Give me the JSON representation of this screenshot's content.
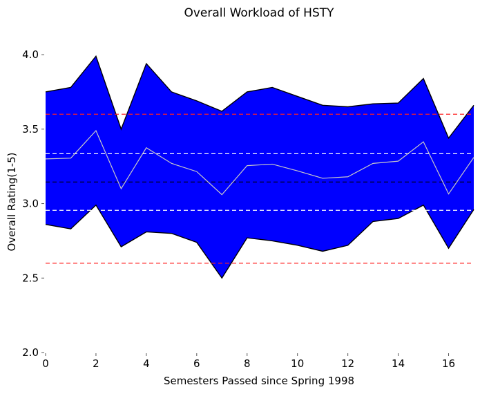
{
  "chart_data": {
    "type": "area",
    "title": "Overall Workload of HSTY",
    "xlabel": "Semesters Passed since Spring 1998",
    "ylabel": "Overall Rating(1-5)",
    "xlim": [
      0,
      17
    ],
    "ylim": [
      2.0,
      4.2
    ],
    "x_ticks": [
      0,
      2,
      4,
      6,
      8,
      10,
      12,
      14,
      16
    ],
    "y_ticks": [
      2.0,
      2.5,
      3.0,
      3.5,
      4.0
    ],
    "x_tick_labels": [
      "0",
      "2",
      "4",
      "6",
      "8",
      "10",
      "12",
      "14",
      "16"
    ],
    "y_tick_labels": [
      "2.0",
      "2.5",
      "3.0",
      "3.5",
      "4.0"
    ],
    "grid": false,
    "x": [
      0,
      1,
      2,
      3,
      4,
      5,
      6,
      7,
      8,
      9,
      10,
      11,
      12,
      13,
      14,
      15,
      16,
      17
    ],
    "series": [
      {
        "role": "band",
        "upper": [
          3.75,
          3.78,
          3.99,
          3.5,
          3.94,
          3.75,
          3.69,
          3.62,
          3.75,
          3.78,
          3.72,
          3.66,
          3.65,
          3.67,
          3.675,
          3.84,
          3.44,
          3.66
        ],
        "lower": [
          2.86,
          2.83,
          2.99,
          2.71,
          2.81,
          2.8,
          2.74,
          2.5,
          2.77,
          2.75,
          2.72,
          2.68,
          2.72,
          2.88,
          2.9,
          2.99,
          2.7,
          2.96
        ],
        "color": "#0000ff"
      },
      {
        "role": "mean",
        "values": [
          3.3,
          3.305,
          3.49,
          3.1,
          3.375,
          3.27,
          3.215,
          3.06,
          3.255,
          3.265,
          3.22,
          3.17,
          3.18,
          3.27,
          3.285,
          3.415,
          3.065,
          3.31
        ],
        "color": "#c8c8c8"
      }
    ],
    "reference_lines": [
      {
        "y": 3.6,
        "color": "#ff2020",
        "style": "dashed"
      },
      {
        "y": 3.335,
        "color": "#ffffff",
        "style": "dashed"
      },
      {
        "y": 3.145,
        "color": "#000000",
        "style": "dashed"
      },
      {
        "y": 2.955,
        "color": "#ffffff",
        "style": "dashed"
      },
      {
        "y": 2.6,
        "color": "#ff2020",
        "style": "dashed"
      }
    ]
  }
}
